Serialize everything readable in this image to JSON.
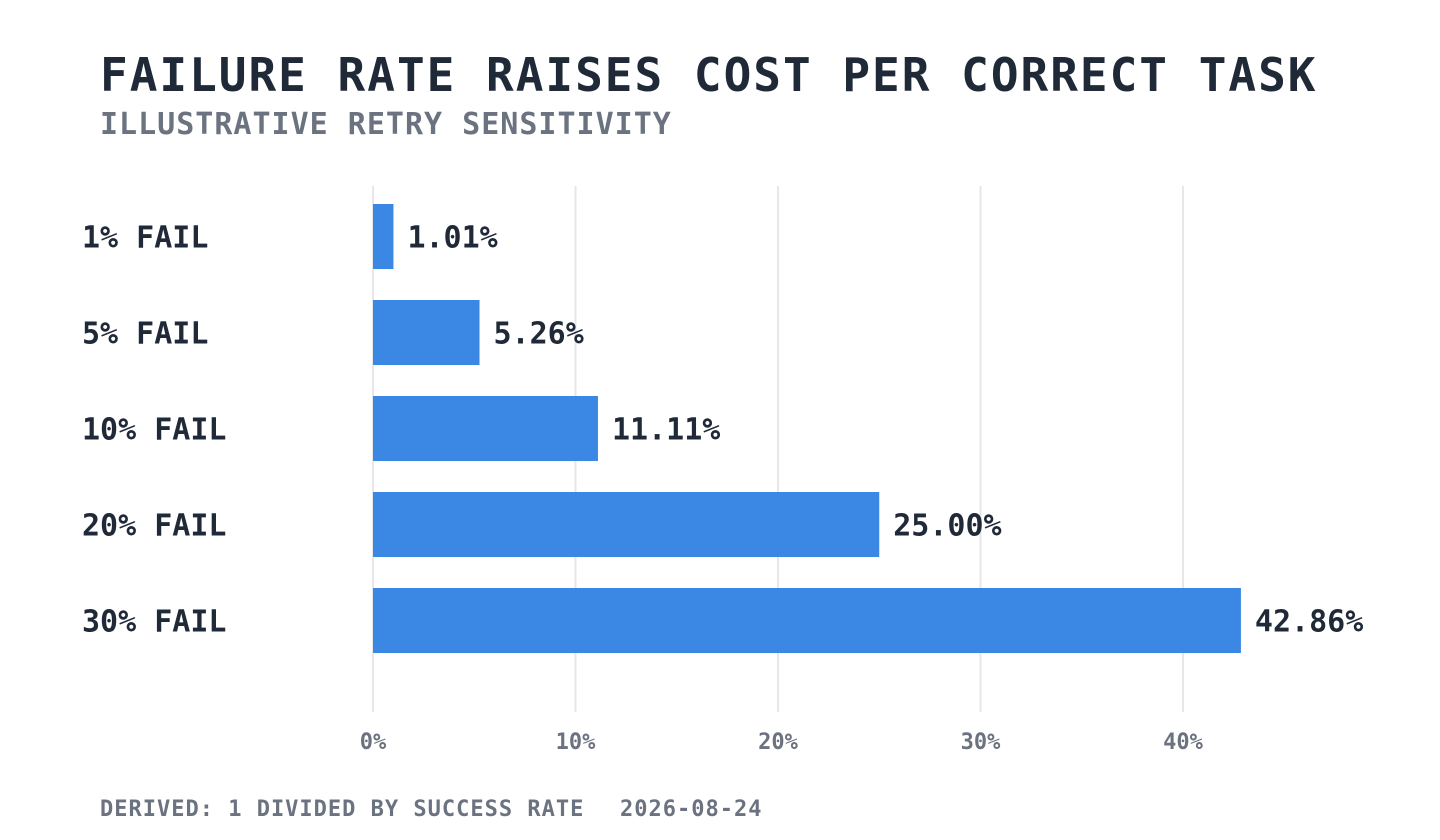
{
  "header": {
    "title": "FAILURE RATE RAISES COST PER CORRECT TASK",
    "subtitle": "ILLUSTRATIVE RETRY SENSITIVITY"
  },
  "footer": {
    "note": "DERIVED: 1 DIVIDED BY SUCCESS RATE",
    "date": "2026-08-24"
  },
  "colors": {
    "bar": "#3a88e3",
    "text": "#1f2937",
    "muted": "#6b7280",
    "grid": "#e5e7eb"
  },
  "chart_data": {
    "type": "bar",
    "orientation": "horizontal",
    "title": "FAILURE RATE RAISES COST PER CORRECT TASK",
    "subtitle": "ILLUSTRATIVE RETRY SENSITIVITY",
    "categories": [
      "1% FAIL",
      "5% FAIL",
      "10% FAIL",
      "20% FAIL",
      "30% FAIL"
    ],
    "values": [
      1.01,
      5.26,
      11.11,
      25.0,
      42.86
    ],
    "value_labels": [
      "1.01%",
      "5.26%",
      "11.11%",
      "25.00%",
      "42.86%"
    ],
    "xlim": [
      0,
      50
    ],
    "x_ticks": [
      0,
      10,
      20,
      30,
      40
    ],
    "x_tick_labels": [
      "0%",
      "10%",
      "20%",
      "30%",
      "40%"
    ],
    "grid": true,
    "legend": "none"
  }
}
